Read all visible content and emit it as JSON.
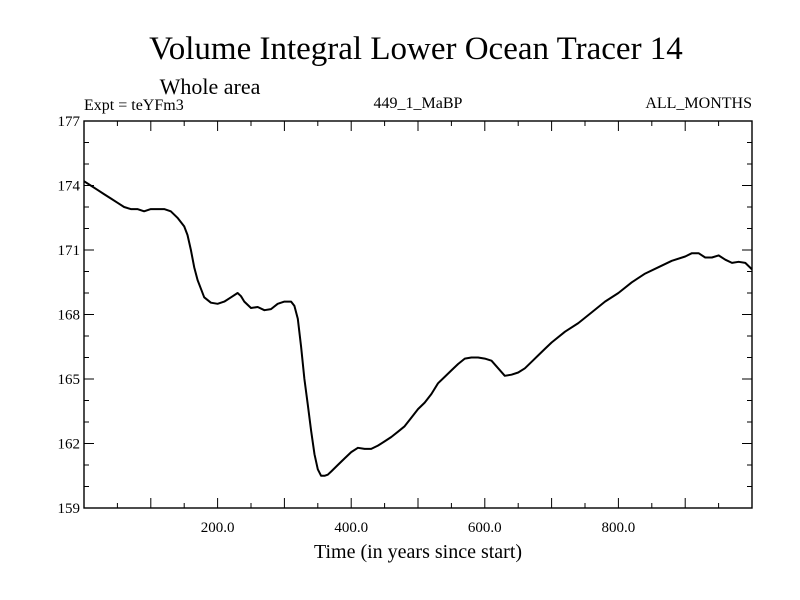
{
  "chart_data": {
    "type": "line",
    "title": "Volume Integral Lower Ocean Tracer 14",
    "subtitle": "Whole area",
    "annotations": {
      "left": "Expt = teYFm3",
      "center": "449_1_MaBP",
      "right": "ALL_MONTHS"
    },
    "xlabel": "Time (in years since start)",
    "ylabel": "",
    "xlim": [
      0,
      1000
    ],
    "ylim": [
      159,
      177
    ],
    "xticks": [
      200,
      400,
      600,
      800
    ],
    "xtick_labels": [
      "200.0",
      "400.0",
      "600.0",
      "800.0"
    ],
    "yticks": [
      159,
      162,
      165,
      168,
      171,
      174,
      177
    ],
    "ytick_labels": [
      "159",
      "162",
      "165",
      "168",
      "171",
      "174",
      "177"
    ],
    "grid": false,
    "series": [
      {
        "name": "Tracer 14",
        "color": "#000000",
        "x": [
          0,
          10,
          20,
          30,
          40,
          50,
          60,
          70,
          80,
          90,
          100,
          110,
          120,
          130,
          140,
          150,
          155,
          160,
          165,
          170,
          175,
          180,
          190,
          200,
          210,
          220,
          230,
          235,
          240,
          250,
          260,
          270,
          280,
          290,
          300,
          310,
          315,
          320,
          325,
          330,
          335,
          340,
          345,
          350,
          355,
          360,
          365,
          370,
          380,
          390,
          400,
          410,
          420,
          430,
          440,
          450,
          460,
          470,
          480,
          490,
          500,
          510,
          520,
          530,
          540,
          550,
          560,
          570,
          580,
          590,
          600,
          610,
          620,
          630,
          640,
          650,
          660,
          670,
          680,
          690,
          700,
          720,
          740,
          760,
          780,
          800,
          820,
          840,
          860,
          880,
          900,
          910,
          920,
          930,
          940,
          950,
          960,
          970,
          980,
          990,
          1000
        ],
        "y": [
          174.2,
          174.0,
          173.8,
          173.6,
          173.4,
          173.2,
          173.0,
          172.9,
          172.9,
          172.8,
          172.9,
          172.9,
          172.9,
          172.8,
          172.5,
          172.1,
          171.7,
          171.0,
          170.2,
          169.6,
          169.2,
          168.8,
          168.55,
          168.5,
          168.6,
          168.8,
          169.0,
          168.85,
          168.6,
          168.3,
          168.35,
          168.2,
          168.25,
          168.5,
          168.6,
          168.6,
          168.4,
          167.8,
          166.5,
          165.0,
          163.8,
          162.6,
          161.5,
          160.8,
          160.5,
          160.5,
          160.55,
          160.7,
          161.0,
          161.3,
          161.6,
          161.8,
          161.75,
          161.75,
          161.9,
          162.1,
          162.3,
          162.55,
          162.8,
          163.2,
          163.6,
          163.9,
          164.3,
          164.8,
          165.1,
          165.4,
          165.7,
          165.95,
          166.0,
          166.0,
          165.95,
          165.85,
          165.5,
          165.15,
          165.2,
          165.3,
          165.5,
          165.8,
          166.1,
          166.4,
          166.7,
          167.2,
          167.6,
          168.1,
          168.6,
          169.0,
          169.5,
          169.9,
          170.2,
          170.5,
          170.7,
          170.85,
          170.85,
          170.65,
          170.65,
          170.75,
          170.55,
          170.4,
          170.45,
          170.4,
          170.1
        ]
      }
    ]
  }
}
